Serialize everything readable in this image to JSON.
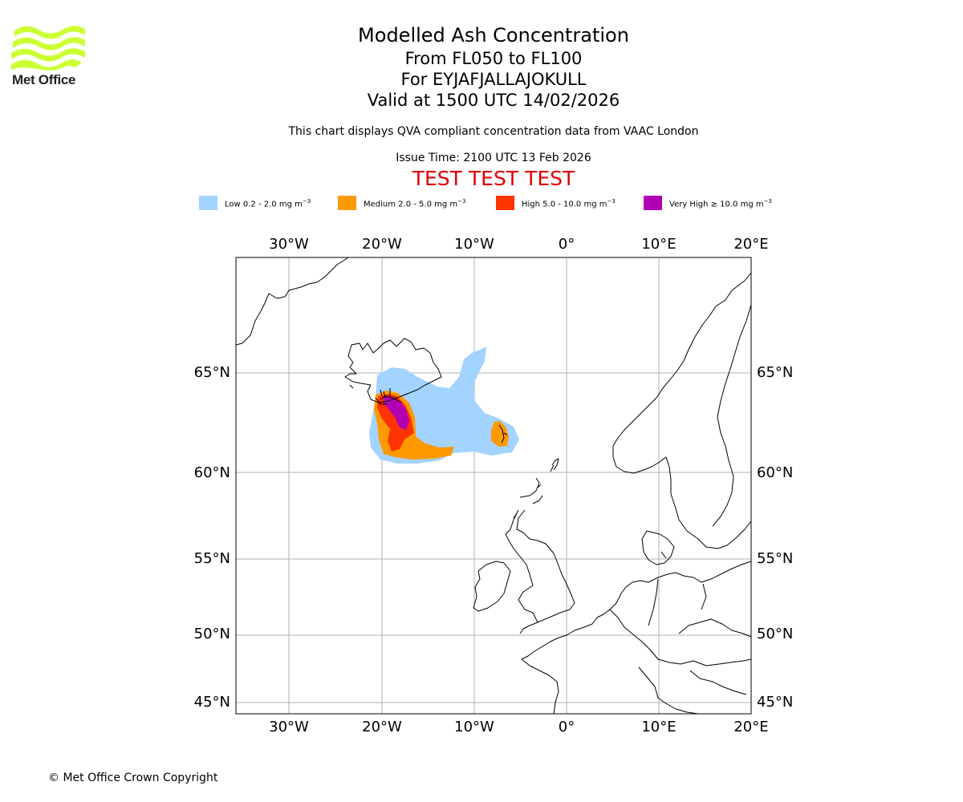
{
  "logo": {
    "text": "Met Office",
    "color": "#ccff33"
  },
  "header": {
    "title": "Modelled Ash Concentration",
    "levels": "From FL050 to FL100",
    "volcano": "For EYJAFJALLAJOKULL",
    "valid": "Valid at 1500 UTC 14/02/2026",
    "description": "This chart displays QVA compliant concentration data from VAAC London",
    "issue_time": "Issue Time: 2100 UTC 13 Feb 2026",
    "test_banner": "TEST TEST TEST"
  },
  "legend": [
    {
      "label": "Low 0.2 - 2.0 mg m",
      "color": "#a3d3ff"
    },
    {
      "label": "Medium 2.0 - 5.0 mg m",
      "color": "#ff9900"
    },
    {
      "label": "High 5.0 - 10.0 mg m",
      "color": "#ff3300"
    },
    {
      "label": "Very High ≥ 10.0 mg m",
      "color": "#b300b3"
    }
  ],
  "legend_unit_exp": "−3",
  "map": {
    "lon_labels": [
      "30°W",
      "20°W",
      "10°W",
      "0°",
      "10°E",
      "20°E"
    ],
    "lat_labels": [
      "65°N",
      "60°N",
      "55°N",
      "50°N",
      "45°N"
    ],
    "grid_color": "#b0b0b0"
  },
  "copyright": "© Met Office Crown Copyright"
}
